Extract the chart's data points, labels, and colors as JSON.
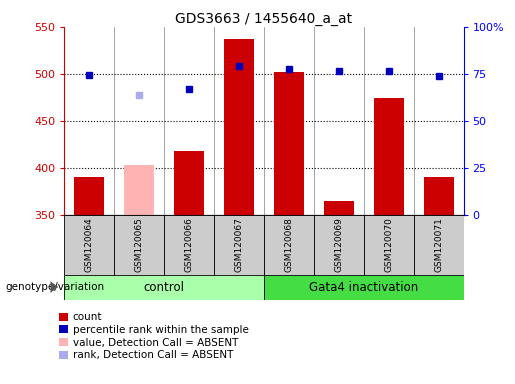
{
  "title": "GDS3663 / 1455640_a_at",
  "samples": [
    "GSM120064",
    "GSM120065",
    "GSM120066",
    "GSM120067",
    "GSM120068",
    "GSM120069",
    "GSM120070",
    "GSM120071"
  ],
  "bar_values": [
    390,
    null,
    418,
    537,
    502,
    365,
    474,
    390
  ],
  "bar_absent_values": [
    null,
    403,
    null,
    null,
    null,
    null,
    null,
    null
  ],
  "blue_marker_values": [
    499,
    null,
    484,
    508,
    505,
    503,
    503,
    498
  ],
  "blue_absent_marker_values": [
    null,
    478,
    null,
    null,
    null,
    null,
    null,
    null
  ],
  "ylim_left": [
    350,
    550
  ],
  "ylim_right": [
    0,
    100
  ],
  "yticks_left": [
    350,
    400,
    450,
    500,
    550
  ],
  "yticks_right": [
    0,
    25,
    50,
    75,
    100
  ],
  "ytick_labels_right": [
    "0",
    "25",
    "50",
    "75",
    "100%"
  ],
  "bar_color": "#cc0000",
  "bar_absent_color": "#ffb3b3",
  "blue_marker_color": "#0000bb",
  "blue_absent_marker_color": "#aaaaee",
  "control_group": [
    0,
    1,
    2,
    3
  ],
  "gata4_group": [
    4,
    5,
    6,
    7
  ],
  "control_label": "control",
  "gata4_label": "Gata4 inactivation",
  "control_bg": "#aaffaa",
  "gata4_bg": "#44dd44",
  "sample_bg": "#cccccc",
  "genotype_label": "genotype/variation",
  "legend_items": [
    {
      "label": "count",
      "color": "#cc0000"
    },
    {
      "label": "percentile rank within the sample",
      "color": "#0000bb"
    },
    {
      "label": "value, Detection Call = ABSENT",
      "color": "#ffb3b3"
    },
    {
      "label": "rank, Detection Call = ABSENT",
      "color": "#aaaaee"
    }
  ]
}
